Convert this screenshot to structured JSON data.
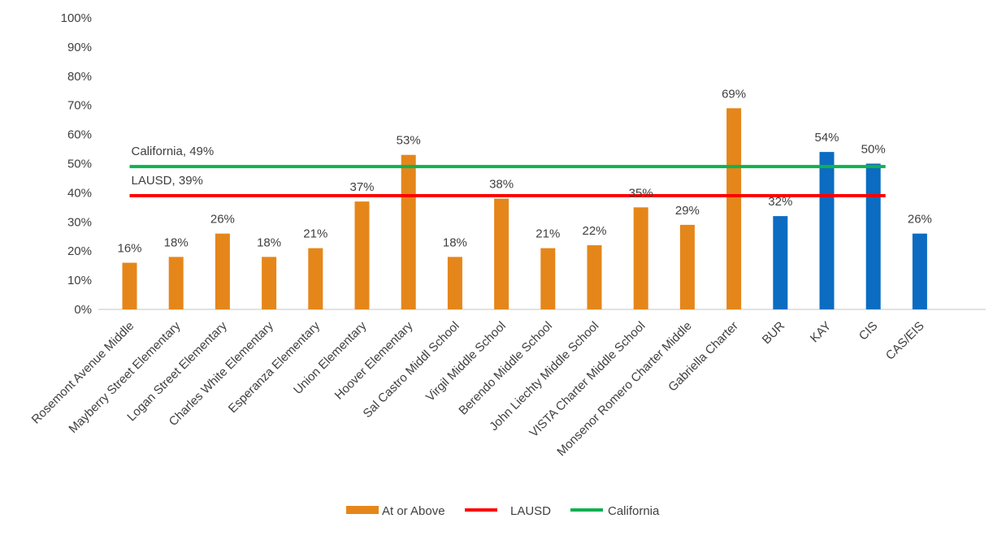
{
  "chart_data": {
    "type": "bar",
    "categories": [
      "Rosemont Avenue Middle",
      "Mayberry Street Elementary",
      "Logan Street Elementary",
      "Charles White Elementary",
      "Esperanza Elementary",
      "Union Elementary",
      "Hoover Elementary",
      "Sal Castro Middl School",
      "Virgil Middle School",
      "Berendo Middle School",
      "John Liechty Middle School",
      "VISTA Charter Middle School",
      "Monsenor Romero Charter Middle",
      "Gabriella Charter",
      "BUR",
      "KAY",
      "CIS",
      "CAS/EIS"
    ],
    "series": [
      {
        "name": "At or Above",
        "values": [
          16,
          18,
          26,
          18,
          21,
          37,
          53,
          18,
          38,
          21,
          22,
          35,
          29,
          69,
          32,
          54,
          50,
          26
        ],
        "data_labels": [
          "16%",
          "18%",
          "26%",
          "18%",
          "21%",
          "37%",
          "53%",
          "18%",
          "38%",
          "21%",
          "22%",
          "35%",
          "29%",
          "69%",
          "32%",
          "54%",
          "50%",
          "26%"
        ],
        "bar_colors": [
          "#E5861A",
          "#E5861A",
          "#E5861A",
          "#E5861A",
          "#E5861A",
          "#E5861A",
          "#E5861A",
          "#E5861A",
          "#E5861A",
          "#E5861A",
          "#E5861A",
          "#E5861A",
          "#E5861A",
          "#E5861A",
          "#0B6CC2",
          "#0B6CC2",
          "#0B6CC2",
          "#0B6CC2"
        ]
      }
    ],
    "reference_lines": [
      {
        "name": "LAUSD",
        "value": 39,
        "label": "LAUSD, 39%",
        "color": "#FF0000"
      },
      {
        "name": "California",
        "value": 49,
        "label": "California, 49%",
        "color": "#11B050"
      }
    ],
    "ylim": [
      0,
      100
    ],
    "yticks": [
      0,
      10,
      20,
      30,
      40,
      50,
      60,
      70,
      80,
      90,
      100
    ],
    "ytick_labels": [
      "0%",
      "10%",
      "20%",
      "30%",
      "40%",
      "50%",
      "60%",
      "70%",
      "80%",
      "90%",
      "100%"
    ],
    "title": "",
    "xlabel": "",
    "ylabel": "",
    "grid": false,
    "legend": {
      "position": "bottom",
      "items": [
        {
          "label": "At or Above",
          "kind": "bar",
          "color": "#E5861A"
        },
        {
          "label": "LAUSD",
          "kind": "line",
          "color": "#FF0000"
        },
        {
          "label": "California",
          "kind": "line",
          "color": "#11B050"
        }
      ]
    },
    "colors": {
      "axis": "#D9D9D9",
      "text": "#404040"
    }
  }
}
